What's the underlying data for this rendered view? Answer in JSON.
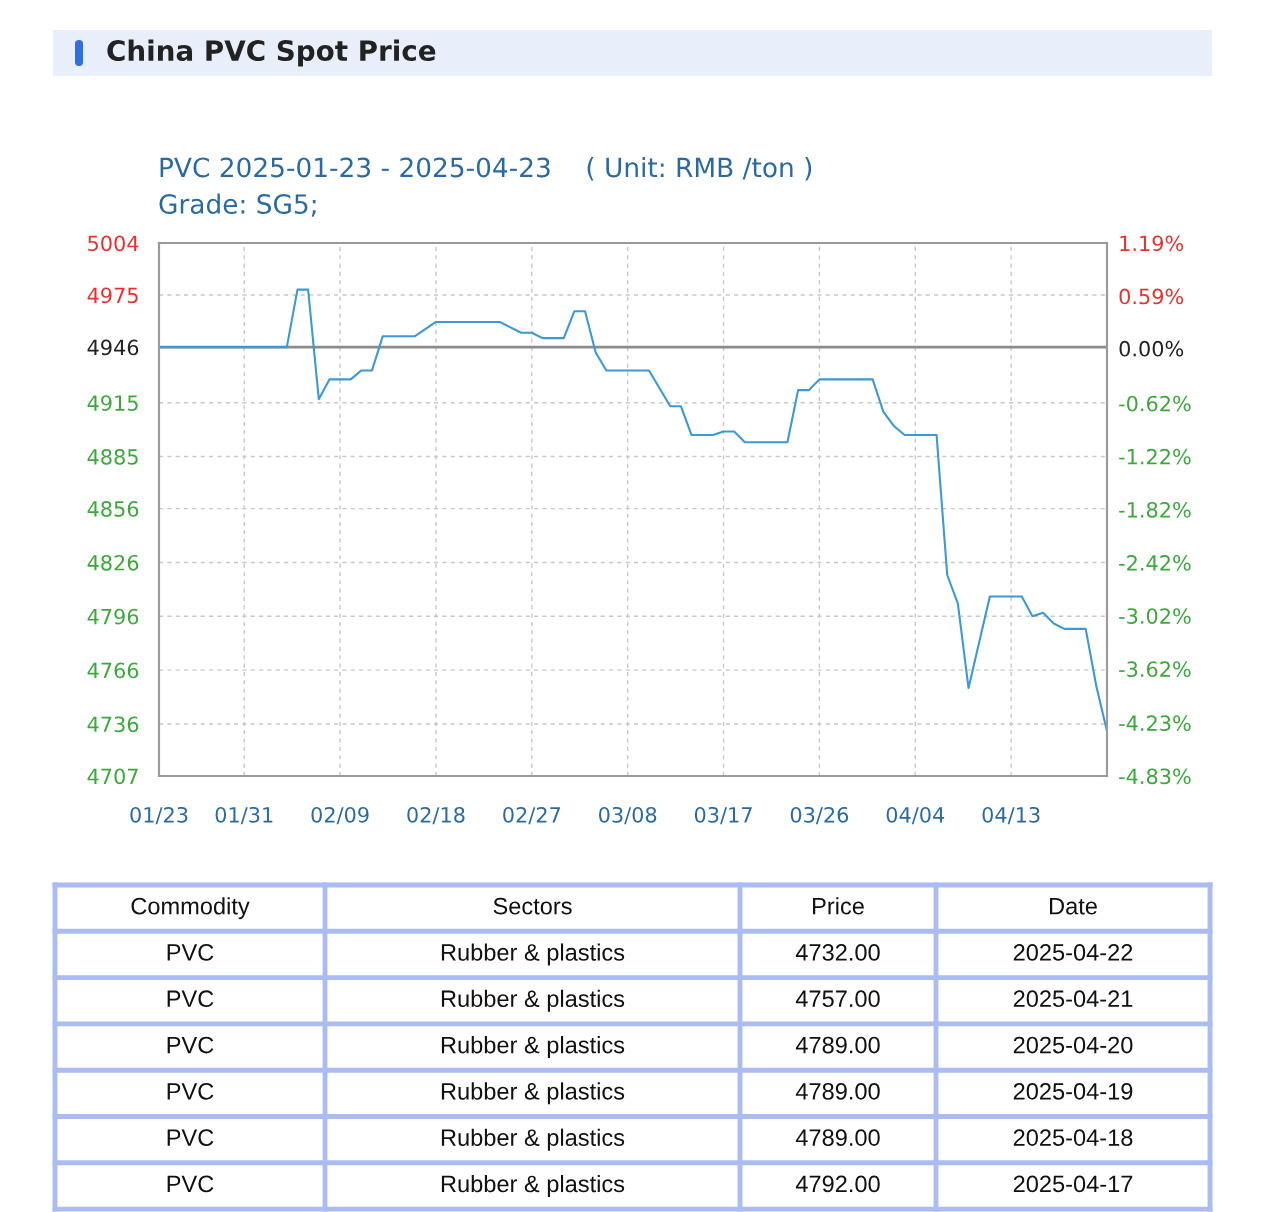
{
  "chart_data": {
    "type": "line",
    "title": "China PVC Spot Price",
    "subtitle": "PVC 2025-01-23 - 2025-04-23    ( Unit: RMB /ton )\nGrade: SG5;",
    "series": [
      {
        "color": "#3d98d6",
        "x": [
          "2025-01-23",
          "2025-02-04",
          "2025-02-05",
          "2025-02-06",
          "2025-02-07",
          "2025-02-08",
          "2025-02-10",
          "2025-02-11",
          "2025-02-12",
          "2025-02-13",
          "2025-02-16",
          "2025-02-18",
          "2025-02-24",
          "2025-02-26",
          "2025-02-27",
          "2025-02-28",
          "2025-03-02",
          "2025-03-03",
          "2025-03-04",
          "2025-03-05",
          "2025-03-06",
          "2025-03-10",
          "2025-03-12",
          "2025-03-13",
          "2025-03-14",
          "2025-03-16",
          "2025-03-17",
          "2025-03-18",
          "2025-03-19",
          "2025-03-23",
          "2025-03-24",
          "2025-03-25",
          "2025-03-26",
          "2025-03-31",
          "2025-04-01",
          "2025-04-02",
          "2025-04-03",
          "2025-04-06",
          "2025-04-07",
          "2025-04-08",
          "2025-04-09",
          "2025-04-11",
          "2025-04-14",
          "2025-04-15",
          "2025-04-16",
          "2025-04-17",
          "2025-04-18",
          "2025-04-19",
          "2025-04-20",
          "2025-04-21",
          "2025-04-22"
        ],
        "values": [
          4946,
          4946,
          4978,
          4978,
          4917,
          4928,
          4928,
          4933,
          4933,
          4952,
          4952,
          4960,
          4960,
          4954,
          4954,
          4951,
          4951,
          4966,
          4966,
          4943,
          4933,
          4933,
          4913,
          4913,
          4897,
          4897,
          4899,
          4899,
          4893,
          4893,
          4922,
          4922,
          4928,
          4928,
          4910,
          4902,
          4897,
          4897,
          4819,
          4803,
          4756,
          4807,
          4807,
          4796,
          4798,
          4792,
          4789,
          4789,
          4789,
          4757,
          4732
        ]
      }
    ],
    "xlim": [
      "2025-01-23",
      "2025-04-22"
    ],
    "xticks": [
      {
        "value": "2025-01-23",
        "label": "01/23"
      },
      {
        "value": "2025-01-31",
        "label": "01/31"
      },
      {
        "value": "2025-02-09",
        "label": "02/09"
      },
      {
        "value": "2025-02-18",
        "label": "02/18"
      },
      {
        "value": "2025-02-27",
        "label": "02/27"
      },
      {
        "value": "2025-03-08",
        "label": "03/08"
      },
      {
        "value": "2025-03-17",
        "label": "03/17"
      },
      {
        "value": "2025-03-26",
        "label": "03/26"
      },
      {
        "value": "2025-04-04",
        "label": "04/04"
      },
      {
        "value": "2025-04-13",
        "label": "04/13"
      }
    ],
    "ylim": [
      4707,
      5004
    ],
    "yticks": [
      4707,
      4736,
      4766,
      4796,
      4826,
      4856,
      4885,
      4915,
      4946,
      4975,
      5004
    ],
    "y2lim": [
      -4.83,
      1.19
    ],
    "y2ticks": [
      {
        "value": -4.83,
        "label": "-4.83%"
      },
      {
        "value": -4.23,
        "label": "-4.23%"
      },
      {
        "value": -3.62,
        "label": "-3.62%"
      },
      {
        "value": -3.02,
        "label": "-3.02%"
      },
      {
        "value": -2.42,
        "label": "-2.42%"
      },
      {
        "value": -1.82,
        "label": "-1.82%"
      },
      {
        "value": -1.22,
        "label": "-1.22%"
      },
      {
        "value": -0.62,
        "label": "-0.62%"
      },
      {
        "value": 0.0,
        "label": "0.00%"
      },
      {
        "value": 0.59,
        "label": "0.59%"
      },
      {
        "value": 1.19,
        "label": "1.19%"
      }
    ],
    "grid": true,
    "line_style": "solid",
    "ref_lines": [
      {
        "axis": "y",
        "value": 4946,
        "color": "#8c8c8c"
      }
    ],
    "annotations": [
      "Commodity",
      "Sectors",
      "Price",
      "Date",
      "PVC",
      "Rubber & plastics",
      "4732.00",
      "2025-04-22",
      "PVC",
      "Rubber & plastics",
      "4757.00",
      "2025-04-21",
      "PVC",
      "Rubber & plastics",
      "4789.00",
      "2025-04-20",
      "PVC",
      "Rubber & plastics",
      "4789.00",
      "2025-04-19",
      "PVC",
      "Rubber & plastics",
      "4789.00",
      "2025-04-18",
      "PVC",
      "Rubber & plastics",
      "4792.00",
      "2025-04-17"
    ]
  }
}
